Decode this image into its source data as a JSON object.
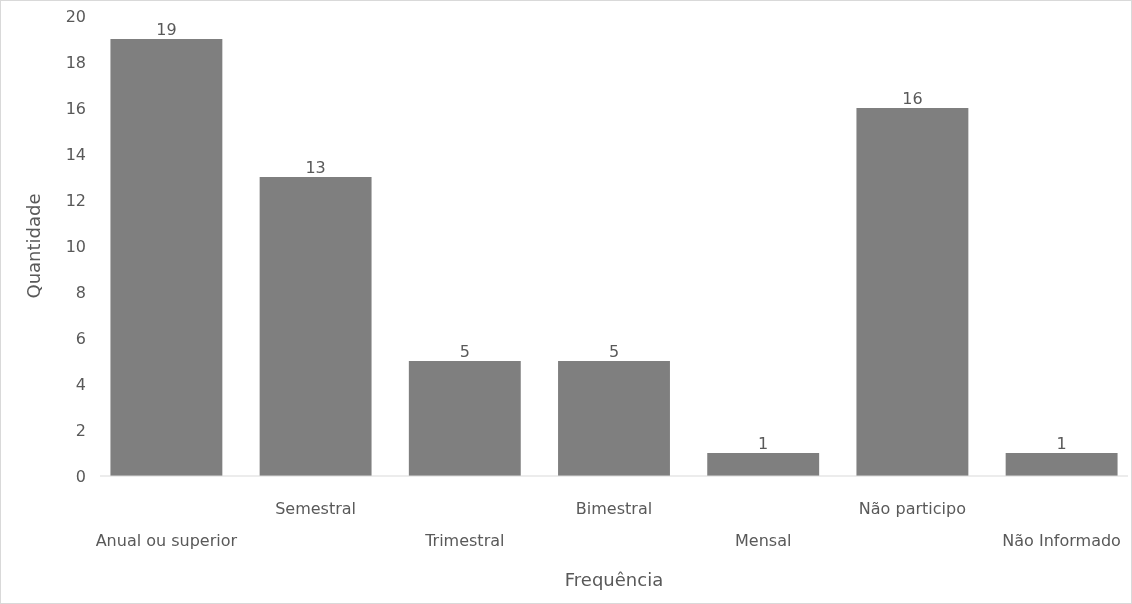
{
  "chart_data": {
    "type": "bar",
    "xlabel": "Frequência",
    "ylabel": "Quantidade",
    "categories": [
      "Anual ou superior",
      "Semestral",
      "Trimestral",
      "Bimestral",
      "Mensal",
      "Não participo",
      "Não Informado"
    ],
    "values": [
      19,
      13,
      5,
      5,
      1,
      16,
      1
    ],
    "color": "#7f7f7f",
    "ylim": [
      0,
      20
    ],
    "yticks": [
      0,
      2,
      4,
      6,
      8,
      10,
      12,
      14,
      16,
      18,
      20
    ],
    "grid": false,
    "data_labels": true
  }
}
